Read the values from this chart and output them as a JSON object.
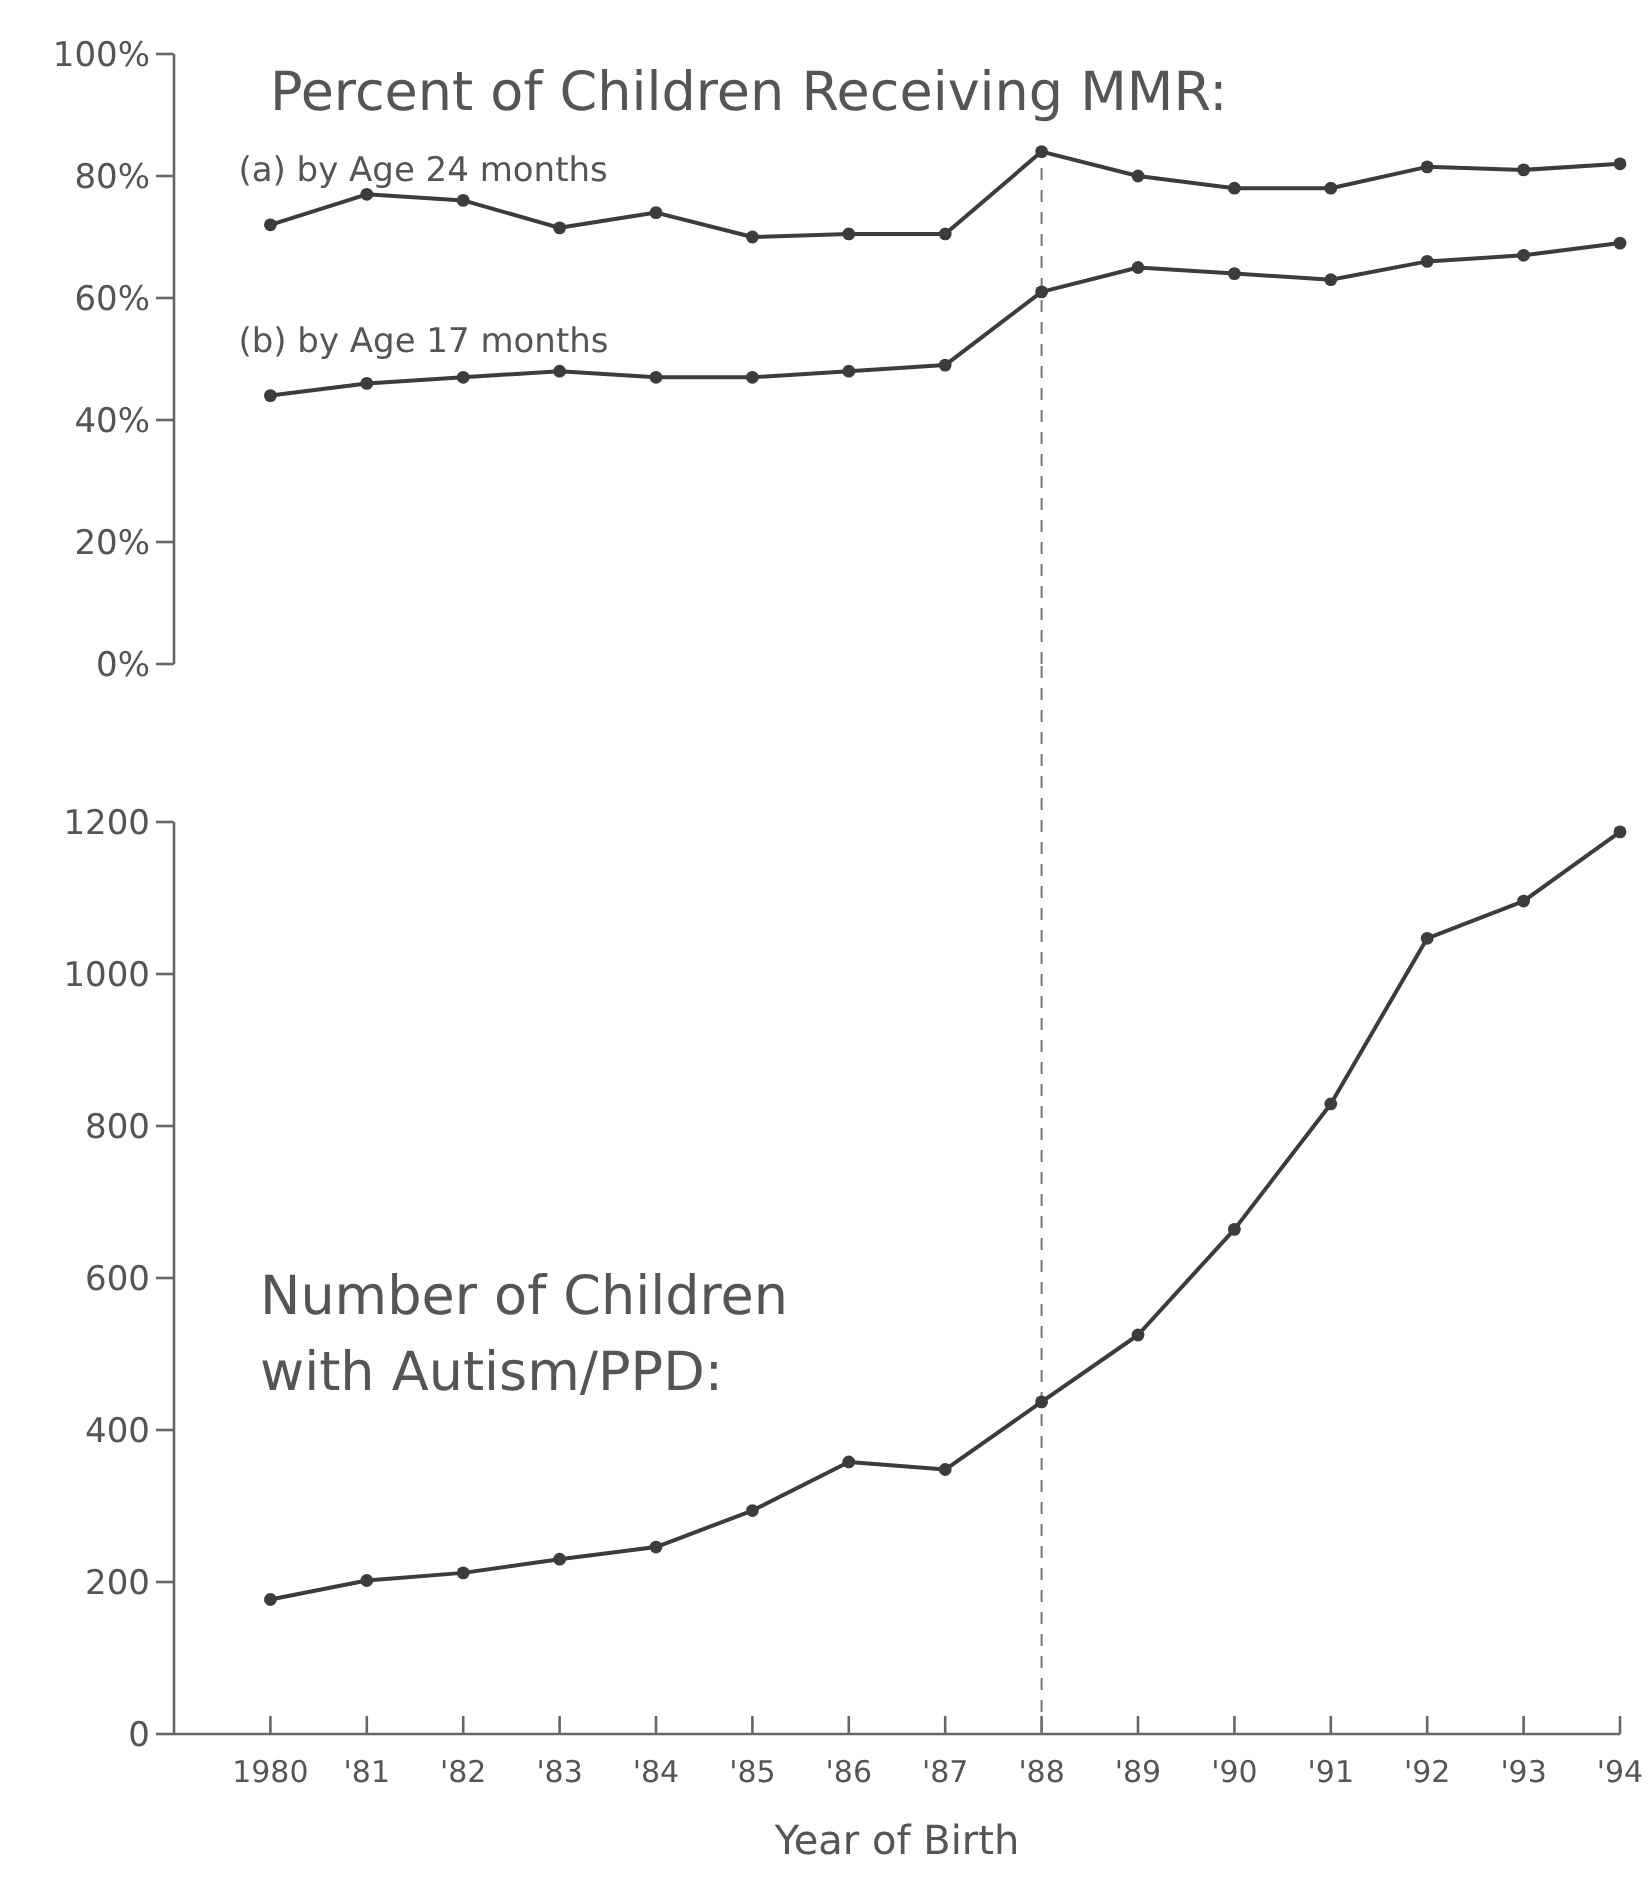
{
  "chart_data": [
    {
      "type": "line",
      "title": "Percent of Children Receiving MMR:",
      "x": [
        1980,
        1981,
        1982,
        1983,
        1984,
        1985,
        1986,
        1987,
        1988,
        1989,
        1990,
        1991,
        1992,
        1993,
        1994
      ],
      "xlim": [
        1979,
        1994
      ],
      "ylim": [
        0,
        100
      ],
      "yticks": [
        {
          "value": 0,
          "label": "0%"
        },
        {
          "value": 20,
          "label": "20%"
        },
        {
          "value": 40,
          "label": "40%"
        },
        {
          "value": 60,
          "label": "60%"
        },
        {
          "value": 80,
          "label": "80%"
        },
        {
          "value": 100,
          "label": "100%"
        }
      ],
      "tick_labels": "y",
      "grid": false,
      "legend": false,
      "marker": "circle",
      "line_style": "solid",
      "series": [
        {
          "name": "(a) by Age 24 months",
          "color": "#3c3c3c",
          "values": [
            72,
            77,
            76,
            71.5,
            74,
            70,
            70.5,
            70.5,
            84,
            80,
            78,
            78,
            81.5,
            81,
            82
          ]
        },
        {
          "name": "(b) by Age 17 months",
          "color": "#3c3c3c",
          "values": [
            44,
            46,
            47,
            48,
            47,
            47,
            48,
            49,
            61,
            65,
            64,
            63,
            66,
            67,
            69
          ]
        }
      ],
      "ref_lines": [
        {
          "axis": "x",
          "value": 1988,
          "line_style": "dashed",
          "color": "#777777"
        }
      ]
    },
    {
      "type": "line",
      "title": "Number of Children with Autism/PPD:",
      "xlabel": "Year of Birth",
      "x": [
        1980,
        1981,
        1982,
        1983,
        1984,
        1985,
        1986,
        1987,
        1988,
        1989,
        1990,
        1991,
        1992,
        1993,
        1994
      ],
      "xlim": [
        1979,
        1994
      ],
      "xticks": [
        {
          "value": 1980,
          "label": "1980"
        },
        {
          "value": 1981,
          "label": "'81"
        },
        {
          "value": 1982,
          "label": "'82"
        },
        {
          "value": 1983,
          "label": "'83"
        },
        {
          "value": 1984,
          "label": "'84"
        },
        {
          "value": 1985,
          "label": "'85"
        },
        {
          "value": 1986,
          "label": "'86"
        },
        {
          "value": 1987,
          "label": "'87"
        },
        {
          "value": 1988,
          "label": "'88"
        },
        {
          "value": 1989,
          "label": "'89"
        },
        {
          "value": 1990,
          "label": "'90"
        },
        {
          "value": 1991,
          "label": "'91"
        },
        {
          "value": 1992,
          "label": "'92"
        },
        {
          "value": 1993,
          "label": "'93"
        },
        {
          "value": 1994,
          "label": "'94"
        }
      ],
      "ylim": [
        0,
        1200
      ],
      "yticks": [
        0,
        200,
        400,
        600,
        800,
        1000,
        1200
      ],
      "grid": false,
      "marker": "circle",
      "line_style": "solid",
      "series": [
        {
          "color": "#3c3c3c",
          "values": [
            177,
            202,
            212,
            230,
            246,
            294,
            358,
            348,
            437,
            525,
            664,
            829,
            1047,
            1096,
            1187
          ]
        }
      ],
      "ref_lines": [
        {
          "axis": "x",
          "value": 1988,
          "line_style": "dashed",
          "color": "#777777"
        }
      ]
    }
  ]
}
